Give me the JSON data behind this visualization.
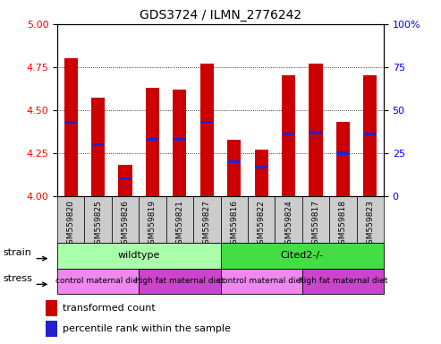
{
  "title": "GDS3724 / ILMN_2776242",
  "samples": [
    "GSM559820",
    "GSM559825",
    "GSM559826",
    "GSM559819",
    "GSM559821",
    "GSM559827",
    "GSM559816",
    "GSM559822",
    "GSM559824",
    "GSM559817",
    "GSM559818",
    "GSM559823"
  ],
  "transformed_counts": [
    4.8,
    4.57,
    4.18,
    4.63,
    4.62,
    4.77,
    4.33,
    4.27,
    4.7,
    4.77,
    4.43,
    4.7
  ],
  "percentile_values": [
    4.43,
    4.3,
    4.1,
    4.33,
    4.33,
    4.43,
    4.2,
    4.17,
    4.36,
    4.37,
    4.25,
    4.36
  ],
  "ylim_left": [
    4.0,
    5.0
  ],
  "ylim_right": [
    0,
    100
  ],
  "yticks_left": [
    4.0,
    4.25,
    4.5,
    4.75,
    5.0
  ],
  "yticks_right": [
    0,
    25,
    50,
    75,
    100
  ],
  "bar_color": "#cc0000",
  "percentile_color": "#2222cc",
  "strain_wildtype_color": "#aaffaa",
  "strain_cited_color": "#44dd44",
  "stress_control_color": "#ee88ee",
  "stress_highfat_color": "#cc44cc",
  "strain_labels": [
    "wildtype",
    "Cited2-/-"
  ],
  "stress_labels": [
    "control maternal diet",
    "high fat maternal diet",
    "control maternal diet",
    "high fat maternal diet"
  ],
  "background_color": "#ffffff",
  "tick_area_color": "#cccccc",
  "legend_red_label": "transformed count",
  "legend_blue_label": "percentile rank within the sample",
  "percentile_bar_height": 0.018,
  "bar_width": 0.5
}
